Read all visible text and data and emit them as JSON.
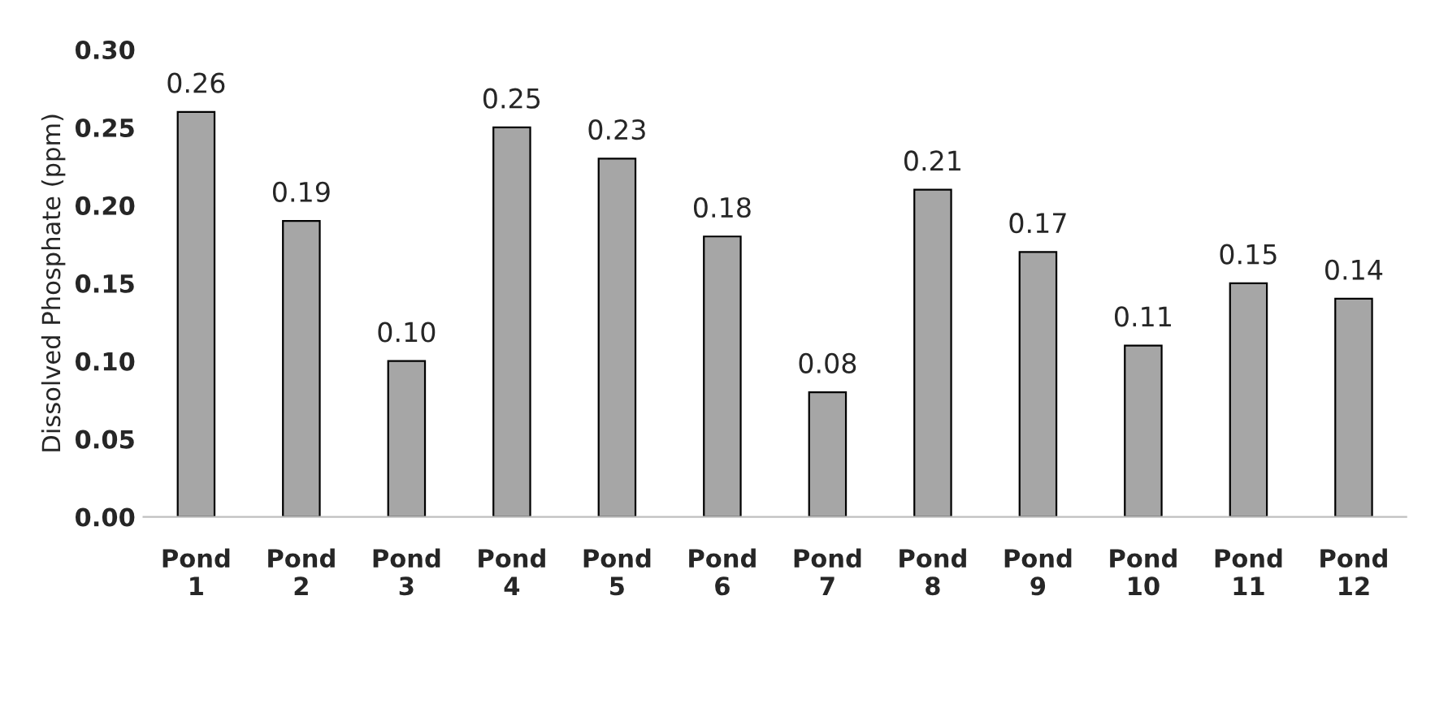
{
  "chart_data": {
    "type": "bar",
    "ylabel": "Dissolved Phosphate (ppm)",
    "categories": [
      "Pond 1",
      "Pond 2",
      "Pond 3",
      "Pond 4",
      "Pond 5",
      "Pond 6",
      "Pond 7",
      "Pond 8",
      "Pond 9",
      "Pond 10",
      "Pond 11",
      "Pond 12"
    ],
    "values": [
      0.26,
      0.19,
      0.1,
      0.25,
      0.23,
      0.18,
      0.08,
      0.21,
      0.17,
      0.11,
      0.15,
      0.14
    ],
    "value_labels": [
      "0.26",
      "0.19",
      "0.10",
      "0.25",
      "0.23",
      "0.18",
      "0.08",
      "0.21",
      "0.17",
      "0.11",
      "0.15",
      "0.14"
    ],
    "color": "#a6a6a6",
    "ylim": [
      0,
      0.3
    ],
    "yticks": [
      {
        "value": 0,
        "label": "0.00"
      },
      {
        "value": 0.05,
        "label": "0.05"
      },
      {
        "value": 0.1,
        "label": "0.10"
      },
      {
        "value": 0.15,
        "label": "0.15"
      },
      {
        "value": 0.2,
        "label": "0.20"
      },
      {
        "value": 0.25,
        "label": "0.25"
      },
      {
        "value": 0.3,
        "label": "0.30"
      }
    ],
    "grid": false,
    "legend": false
  }
}
